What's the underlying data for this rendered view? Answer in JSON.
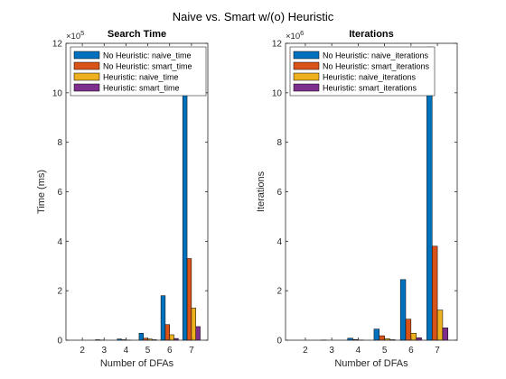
{
  "figure": {
    "suptitle": "Naive vs. Smart w/(o) Heuristic"
  },
  "chart_data": [
    {
      "type": "bar",
      "title": "Search Time",
      "xlabel": "Number of DFAs",
      "ylabel": "Time (ms)",
      "exponent_label": "×10^5",
      "exponent_base": "×10",
      "exponent_power": "5",
      "categories": [
        2,
        3,
        4,
        5,
        6,
        7
      ],
      "ylim": [
        0,
        12
      ],
      "yticks": [
        0,
        2,
        4,
        6,
        8,
        10,
        12
      ],
      "legend_position": "top-left",
      "grid": false,
      "series": [
        {
          "name": "No Heuristic: naive_time",
          "color": "#0072BD",
          "values": [
            0.0,
            0.02,
            0.05,
            0.28,
            1.8,
            10.55
          ]
        },
        {
          "name": "No Heuristic: smart_time",
          "color": "#D95319",
          "values": [
            0.0,
            0.01,
            0.02,
            0.08,
            0.63,
            3.3
          ]
        },
        {
          "name": "Heuristic: naive_time",
          "color": "#EDB120",
          "values": [
            0.0,
            0.0,
            0.01,
            0.05,
            0.22,
            1.3
          ]
        },
        {
          "name": "Heuristic: smart_time",
          "color": "#7E2F8E",
          "values": [
            0.0,
            0.0,
            0.0,
            0.02,
            0.07,
            0.55
          ]
        }
      ]
    },
    {
      "type": "bar",
      "title": "Iterations",
      "xlabel": "Number of DFAs",
      "ylabel": "Iterations",
      "exponent_label": "×10^6",
      "exponent_base": "×10",
      "exponent_power": "6",
      "categories": [
        2,
        3,
        4,
        5,
        6,
        7
      ],
      "ylim": [
        0,
        12
      ],
      "yticks": [
        0,
        2,
        4,
        6,
        8,
        10,
        12
      ],
      "legend_position": "top-left",
      "grid": false,
      "series": [
        {
          "name": "No Heuristic: naive_iterations",
          "color": "#0072BD",
          "values": [
            0.0,
            0.01,
            0.08,
            0.45,
            2.45,
            11.85
          ]
        },
        {
          "name": "No Heuristic: smart_iterations",
          "color": "#D95319",
          "values": [
            0.0,
            0.0,
            0.03,
            0.18,
            0.85,
            3.8
          ]
        },
        {
          "name": "Heuristic: naive_iterations",
          "color": "#EDB120",
          "values": [
            0.0,
            0.0,
            0.01,
            0.06,
            0.28,
            1.22
          ]
        },
        {
          "name": "Heuristic: smart_iterations",
          "color": "#7E2F8E",
          "values": [
            0.0,
            0.0,
            0.0,
            0.02,
            0.1,
            0.5
          ]
        }
      ]
    }
  ]
}
